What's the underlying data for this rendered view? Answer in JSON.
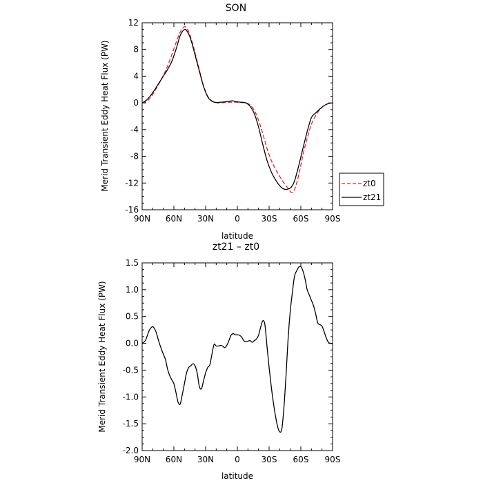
{
  "chart_data": [
    {
      "type": "line",
      "title": "SON",
      "xlabel": "latitude",
      "ylabel": "Merid Transient Eddy Heat Flux (PW)",
      "x_ticks": [
        {
          "lat": 90,
          "label": "90N"
        },
        {
          "lat": 60,
          "label": "60N"
        },
        {
          "lat": 30,
          "label": "30N"
        },
        {
          "lat": 0,
          "label": "0"
        },
        {
          "lat": -30,
          "label": "30S"
        },
        {
          "lat": -60,
          "label": "60S"
        },
        {
          "lat": -90,
          "label": "90S"
        }
      ],
      "x_range": [
        90,
        -90
      ],
      "y_ticks": [
        12,
        8,
        4,
        0,
        -4,
        -8,
        -12,
        -16
      ],
      "ylim": [
        -16,
        12
      ],
      "legend_position": "outside-right",
      "series": [
        {
          "name": "zt0",
          "color": "#e8201c",
          "style": "dashed",
          "x": [
            90,
            86,
            82,
            78,
            74,
            70,
            66,
            62,
            58,
            54,
            50,
            47,
            44,
            40,
            36,
            32,
            28,
            24,
            20,
            16,
            12,
            8,
            4,
            0,
            -4,
            -8,
            -12,
            -16,
            -20,
            -24,
            -28,
            -32,
            -36,
            -40,
            -44,
            -48,
            -51,
            -54,
            -58,
            -62,
            -66,
            -70,
            -74,
            -78,
            -82,
            -86,
            -90
          ],
          "y": [
            0,
            0.2,
            0.8,
            1.8,
            2.9,
            4.1,
            5.5,
            7.2,
            9.0,
            10.6,
            11.4,
            11.0,
            9.8,
            7.5,
            5.0,
            2.6,
            1.0,
            0.3,
            0.05,
            0,
            0.05,
            0.1,
            0.1,
            0.1,
            0.05,
            0,
            -0.3,
            -1.1,
            -2.6,
            -4.6,
            -6.8,
            -8.6,
            -9.9,
            -11.0,
            -12.0,
            -12.8,
            -13.4,
            -13.0,
            -10.8,
            -7.8,
            -5.3,
            -3.2,
            -1.9,
            -1.0,
            -0.4,
            -0.1,
            0
          ]
        },
        {
          "name": "zt21",
          "color": "#000000",
          "style": "solid",
          "x": [
            90,
            86,
            82,
            78,
            74,
            70,
            66,
            62,
            58,
            54,
            50,
            47,
            44,
            40,
            36,
            32,
            28,
            24,
            20,
            16,
            12,
            8,
            4,
            0,
            -4,
            -8,
            -12,
            -16,
            -20,
            -24,
            -28,
            -32,
            -36,
            -40,
            -44,
            -48,
            -51,
            -54,
            -58,
            -62,
            -66,
            -70,
            -74,
            -78,
            -82,
            -86,
            -90
          ],
          "y": [
            0,
            0.4,
            1.1,
            2.0,
            3.0,
            4.0,
            5.0,
            6.2,
            8.0,
            10.1,
            11.0,
            10.6,
            9.5,
            7.2,
            4.8,
            2.5,
            0.9,
            0.25,
            0.05,
            0.1,
            0.15,
            0.25,
            0.3,
            0.15,
            0.1,
            0,
            -0.5,
            -1.6,
            -3.6,
            -6.2,
            -8.6,
            -10.3,
            -11.5,
            -12.4,
            -12.9,
            -12.9,
            -12.6,
            -11.7,
            -9.4,
            -6.8,
            -4.3,
            -2.2,
            -1.5,
            -0.9,
            -0.4,
            -0.1,
            0
          ]
        }
      ]
    },
    {
      "type": "line",
      "title": "zt21 – zt0",
      "xlabel": "latitude",
      "ylabel": "Merid Transient Eddy Heat Flux (PW)",
      "x_ticks": [
        {
          "lat": 90,
          "label": "90N"
        },
        {
          "lat": 60,
          "label": "60N"
        },
        {
          "lat": 30,
          "label": "30N"
        },
        {
          "lat": 0,
          "label": "0"
        },
        {
          "lat": -30,
          "label": "30S"
        },
        {
          "lat": -60,
          "label": "60S"
        },
        {
          "lat": -90,
          "label": "90S"
        }
      ],
      "x_range": [
        90,
        -90
      ],
      "y_ticks": [
        {
          "value": 1.5,
          "label": "1.5"
        },
        {
          "value": 1.0,
          "label": "1.0"
        },
        {
          "value": 0.5,
          "label": "0.5"
        },
        {
          "value": 0.0,
          "label": "0.0"
        },
        {
          "value": -0.5,
          "label": "-0.5"
        },
        {
          "value": -1.0,
          "label": "-1.0"
        },
        {
          "value": -1.5,
          "label": "-1.5"
        },
        {
          "value": -2.0,
          "label": "-2.0"
        }
      ],
      "ylim": [
        -2.0,
        1.5
      ],
      "series": [
        {
          "color": "#000000",
          "style": "solid",
          "x": [
            90,
            87,
            85,
            83,
            80,
            77,
            74,
            71,
            68,
            66,
            64,
            62,
            60,
            58,
            56,
            54,
            52,
            50,
            48,
            46,
            44,
            42,
            40,
            38,
            36,
            34,
            32,
            30,
            28,
            26,
            24,
            22,
            20,
            18,
            16,
            14,
            12,
            10,
            8,
            6,
            4,
            2,
            0,
            -2,
            -4,
            -6,
            -8,
            -10,
            -12,
            -14,
            -16,
            -18,
            -20,
            -22,
            -24,
            -26,
            -28,
            -30,
            -32,
            -34,
            -36,
            -38,
            -40,
            -42,
            -44,
            -46,
            -48,
            -50,
            -52,
            -54,
            -56,
            -58,
            -60,
            -62,
            -64,
            -66,
            -68,
            -70,
            -72,
            -74,
            -76,
            -78,
            -80,
            -82,
            -84,
            -86,
            -88,
            -90
          ],
          "y": [
            0.0,
            0.05,
            0.15,
            0.25,
            0.31,
            0.22,
            0.02,
            -0.15,
            -0.3,
            -0.48,
            -0.6,
            -0.68,
            -0.75,
            -0.92,
            -1.1,
            -1.13,
            -0.95,
            -0.75,
            -0.55,
            -0.45,
            -0.42,
            -0.38,
            -0.42,
            -0.55,
            -0.8,
            -0.85,
            -0.7,
            -0.55,
            -0.45,
            -0.4,
            -0.2,
            -0.02,
            -0.05,
            -0.05,
            -0.04,
            -0.05,
            -0.08,
            -0.04,
            0.05,
            0.15,
            0.18,
            0.16,
            0.16,
            0.15,
            0.12,
            0.05,
            0.03,
            0.04,
            0.05,
            0.02,
            0.05,
            0.08,
            0.15,
            0.3,
            0.42,
            0.35,
            -0.05,
            -0.45,
            -0.8,
            -1.1,
            -1.35,
            -1.55,
            -1.65,
            -1.6,
            -1.2,
            -0.6,
            0.1,
            0.6,
            0.95,
            1.25,
            1.35,
            1.42,
            1.43,
            1.35,
            1.2,
            1.0,
            0.9,
            0.8,
            0.7,
            0.55,
            0.38,
            0.35,
            0.32,
            0.22,
            0.1,
            0.02,
            0.0,
            -0.01
          ]
        }
      ]
    }
  ]
}
